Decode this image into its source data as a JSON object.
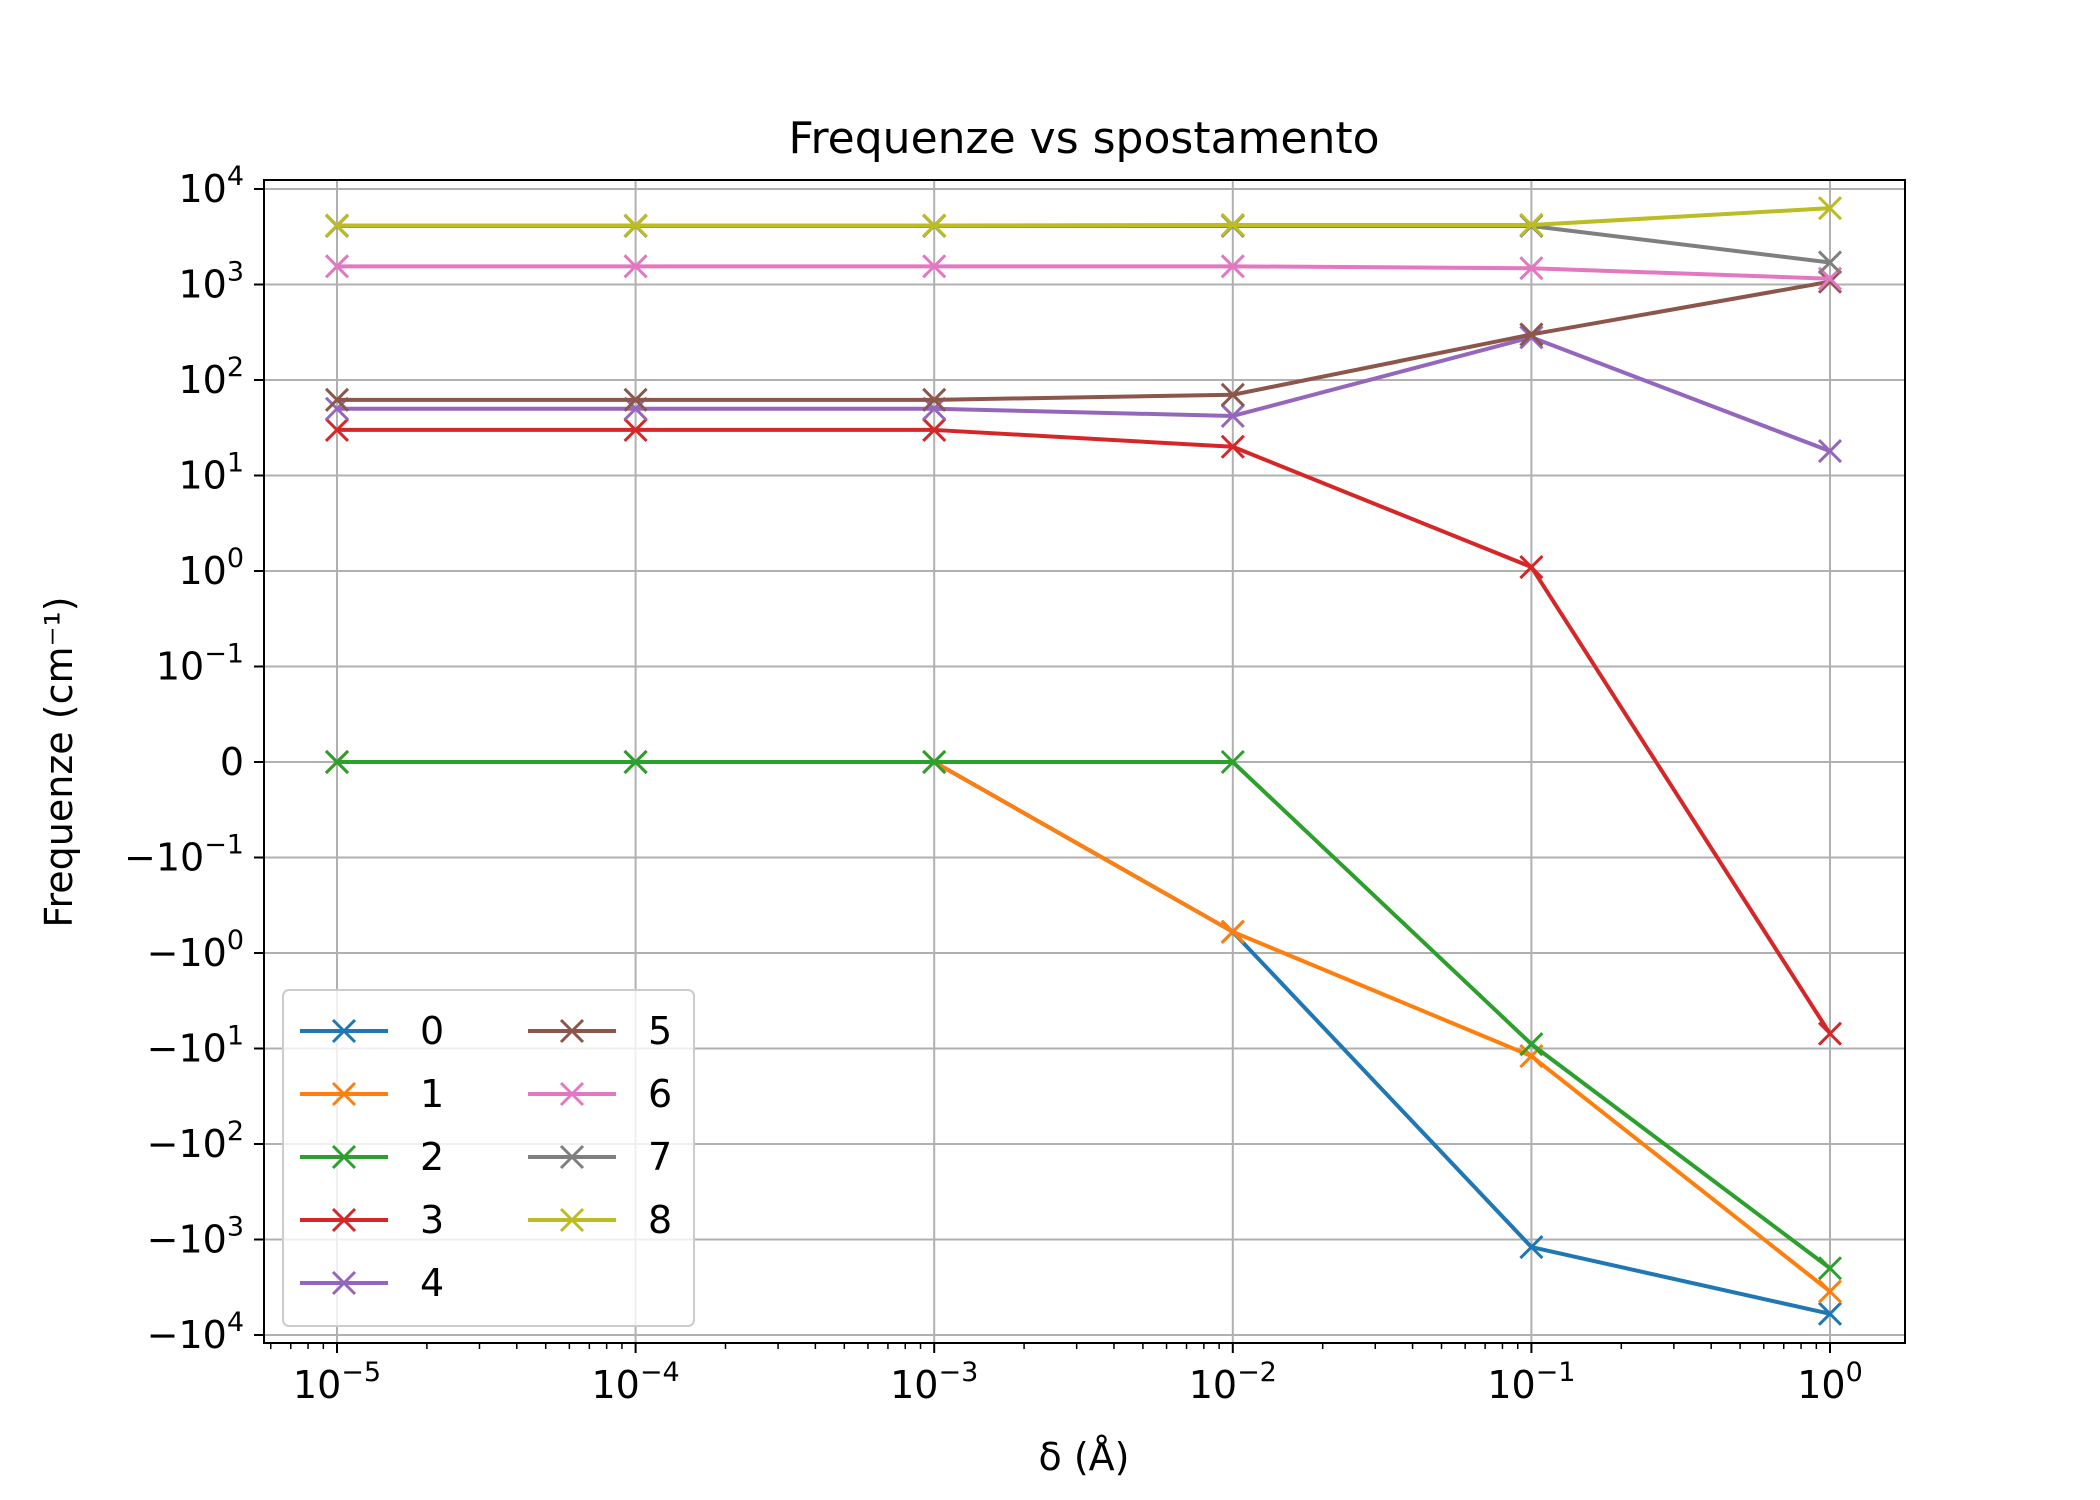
{
  "chart_data": {
    "type": "line",
    "title": "Frequenze vs spostamento",
    "xlabel": "δ (Å)",
    "ylabel": "Frequenze (cm⁻¹)",
    "xscale": "log",
    "yscale": "symlog",
    "grid": true,
    "legend_location": "lower-left",
    "legend_columns": 2,
    "x": [
      1e-05,
      0.0001,
      0.001,
      0.01,
      0.1,
      1
    ],
    "x_tick_labels": [
      {
        "base": "10",
        "exp": "−5"
      },
      {
        "base": "10",
        "exp": "−4"
      },
      {
        "base": "10",
        "exp": "−3"
      },
      {
        "base": "10",
        "exp": "−2"
      },
      {
        "base": "10",
        "exp": "−1"
      },
      {
        "base": "10",
        "exp": "0"
      }
    ],
    "y_ticks": [
      {
        "value": 10000,
        "base": "10",
        "exp": "4"
      },
      {
        "value": 1000,
        "base": "10",
        "exp": "3"
      },
      {
        "value": 100,
        "base": "10",
        "exp": "2"
      },
      {
        "value": 10,
        "base": "10",
        "exp": "1"
      },
      {
        "value": 1,
        "base": "10",
        "exp": "0"
      },
      {
        "value": 0.1,
        "base": "10",
        "exp": "−1"
      },
      {
        "value": 0,
        "base": "0",
        "exp": ""
      },
      {
        "value": -0.1,
        "base": "−10",
        "exp": "−1"
      },
      {
        "value": -1,
        "base": "−10",
        "exp": "0"
      },
      {
        "value": -10,
        "base": "−10",
        "exp": "1"
      },
      {
        "value": -100,
        "base": "−10",
        "exp": "2"
      },
      {
        "value": -1000,
        "base": "−10",
        "exp": "3"
      },
      {
        "value": -10000,
        "base": "−10",
        "exp": "4"
      }
    ],
    "series": [
      {
        "name": "0",
        "color": "#1f77b4",
        "values": [
          0,
          0,
          0,
          -0.6,
          -1200,
          -6000
        ]
      },
      {
        "name": "1",
        "color": "#ff7f0e",
        "values": [
          0,
          0,
          0,
          -0.6,
          -12,
          -3500
        ]
      },
      {
        "name": "2",
        "color": "#2ca02c",
        "values": [
          0,
          0,
          0,
          0,
          -9,
          -2000
        ]
      },
      {
        "name": "3",
        "color": "#d62728",
        "values": [
          30,
          30,
          30,
          20,
          1.1,
          -7
        ]
      },
      {
        "name": "4",
        "color": "#9467bd",
        "values": [
          50,
          50,
          50,
          42,
          280,
          18
        ]
      },
      {
        "name": "5",
        "color": "#8c564b",
        "values": [
          62,
          62,
          62,
          70,
          300,
          1070
        ]
      },
      {
        "name": "6",
        "color": "#e377c2",
        "values": [
          1550,
          1550,
          1550,
          1550,
          1480,
          1150
        ]
      },
      {
        "name": "7",
        "color": "#7f7f7f",
        "values": [
          4100,
          4100,
          4100,
          4100,
          4100,
          1700
        ]
      },
      {
        "name": "8",
        "color": "#bcbd22",
        "values": [
          4150,
          4150,
          4150,
          4200,
          4200,
          6300
        ]
      }
    ]
  }
}
